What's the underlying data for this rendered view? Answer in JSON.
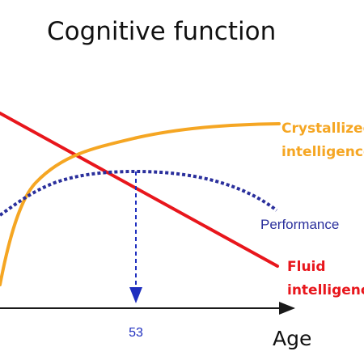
{
  "chart_data": {
    "type": "line",
    "title": "Cognitive function",
    "xlabel": "Age",
    "ylabel": "",
    "marker": {
      "x_value": 53,
      "label": "53"
    },
    "series": [
      {
        "name": "Crystallized intelligence",
        "label_lines": [
          "Crystallized",
          "intelligence"
        ],
        "color": "#f5a623",
        "style": "solid"
      },
      {
        "name": "Fluid intelligence",
        "label_lines": [
          "Fluid",
          "intelligence"
        ],
        "color": "#e8161c",
        "style": "solid"
      },
      {
        "name": "Performance",
        "label_lines": [
          "Performance"
        ],
        "color": "#2a2f9c",
        "style": "dotted"
      }
    ],
    "axis_color": "#1a1a1a",
    "marker_color": "#1f2fbf"
  }
}
